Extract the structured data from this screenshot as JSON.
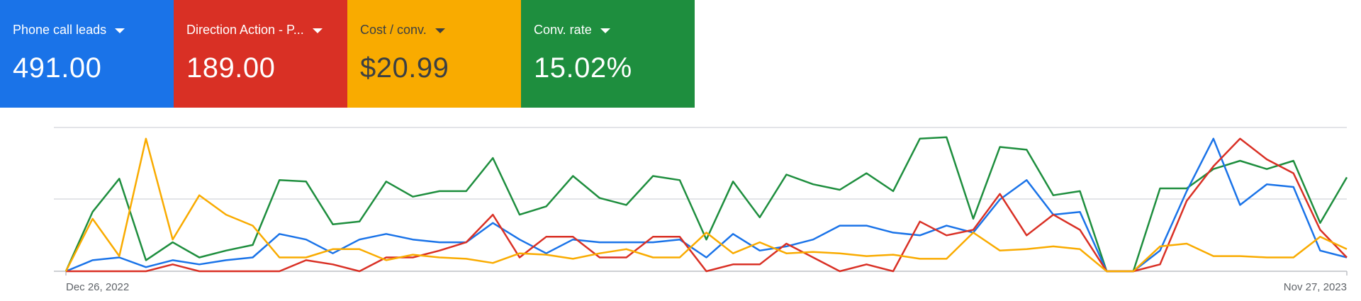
{
  "metrics": [
    {
      "label": "Phone call leads",
      "value": "491.00",
      "color": "#1a73e8",
      "text_color": "#ffffff"
    },
    {
      "label": "Direction Action - P...",
      "value": "189.00",
      "color": "#d93025",
      "text_color": "#ffffff"
    },
    {
      "label": "Cost / conv.",
      "value": "$20.99",
      "color": "#f9ab00",
      "text_color": "#3c4043"
    },
    {
      "label": "Conv. rate",
      "value": "15.02%",
      "color": "#1e8e3e",
      "text_color": "#ffffff"
    }
  ],
  "chart_data": {
    "type": "line",
    "x_start_label": "Dec 26, 2022",
    "x_end_label": "Nov 27, 2023",
    "grid": true,
    "ylim": [
      0,
      1
    ],
    "series": [
      {
        "color": "#1e8e3e",
        "values": [
          0.0,
          0.43,
          0.67,
          0.08,
          0.21,
          0.1,
          0.15,
          0.19,
          0.66,
          0.65,
          0.34,
          0.36,
          0.65,
          0.54,
          0.58,
          0.58,
          0.82,
          0.41,
          0.47,
          0.69,
          0.53,
          0.48,
          0.69,
          0.66,
          0.23,
          0.65,
          0.39,
          0.7,
          0.63,
          0.59,
          0.71,
          0.58,
          0.96,
          0.97,
          0.38,
          0.9,
          0.88,
          0.55,
          0.58,
          0.0,
          0.0,
          0.6,
          0.6,
          0.74,
          0.8,
          0.74,
          0.8,
          0.35,
          0.68
        ]
      },
      {
        "color": "#1a73e8",
        "values": [
          0.0,
          0.08,
          0.1,
          0.03,
          0.08,
          0.05,
          0.08,
          0.1,
          0.27,
          0.23,
          0.13,
          0.23,
          0.27,
          0.23,
          0.21,
          0.21,
          0.35,
          0.23,
          0.13,
          0.23,
          0.21,
          0.21,
          0.21,
          0.23,
          0.1,
          0.27,
          0.15,
          0.18,
          0.23,
          0.33,
          0.33,
          0.28,
          0.26,
          0.33,
          0.28,
          0.52,
          0.66,
          0.41,
          0.43,
          0.0,
          0.0,
          0.15,
          0.58,
          0.96,
          0.48,
          0.63,
          0.61,
          0.15,
          0.1
        ]
      },
      {
        "color": "#d93025",
        "values": [
          0.0,
          0.0,
          0.0,
          0.0,
          0.05,
          0.0,
          0.0,
          0.0,
          0.0,
          0.08,
          0.05,
          0.0,
          0.1,
          0.1,
          0.15,
          0.21,
          0.41,
          0.1,
          0.25,
          0.25,
          0.1,
          0.1,
          0.25,
          0.25,
          0.0,
          0.05,
          0.05,
          0.2,
          0.1,
          0.0,
          0.05,
          0.0,
          0.36,
          0.26,
          0.3,
          0.56,
          0.26,
          0.41,
          0.3,
          0.0,
          0.0,
          0.05,
          0.51,
          0.76,
          0.96,
          0.81,
          0.71,
          0.3,
          0.1
        ]
      },
      {
        "color": "#f9ab00",
        "values": [
          0.0,
          0.38,
          0.11,
          0.96,
          0.23,
          0.55,
          0.41,
          0.33,
          0.1,
          0.1,
          0.16,
          0.16,
          0.08,
          0.12,
          0.1,
          0.09,
          0.06,
          0.13,
          0.12,
          0.09,
          0.13,
          0.16,
          0.1,
          0.1,
          0.28,
          0.13,
          0.21,
          0.13,
          0.14,
          0.13,
          0.11,
          0.12,
          0.09,
          0.09,
          0.28,
          0.15,
          0.16,
          0.18,
          0.16,
          0.0,
          0.0,
          0.18,
          0.2,
          0.11,
          0.11,
          0.1,
          0.1,
          0.25,
          0.16
        ]
      }
    ]
  }
}
